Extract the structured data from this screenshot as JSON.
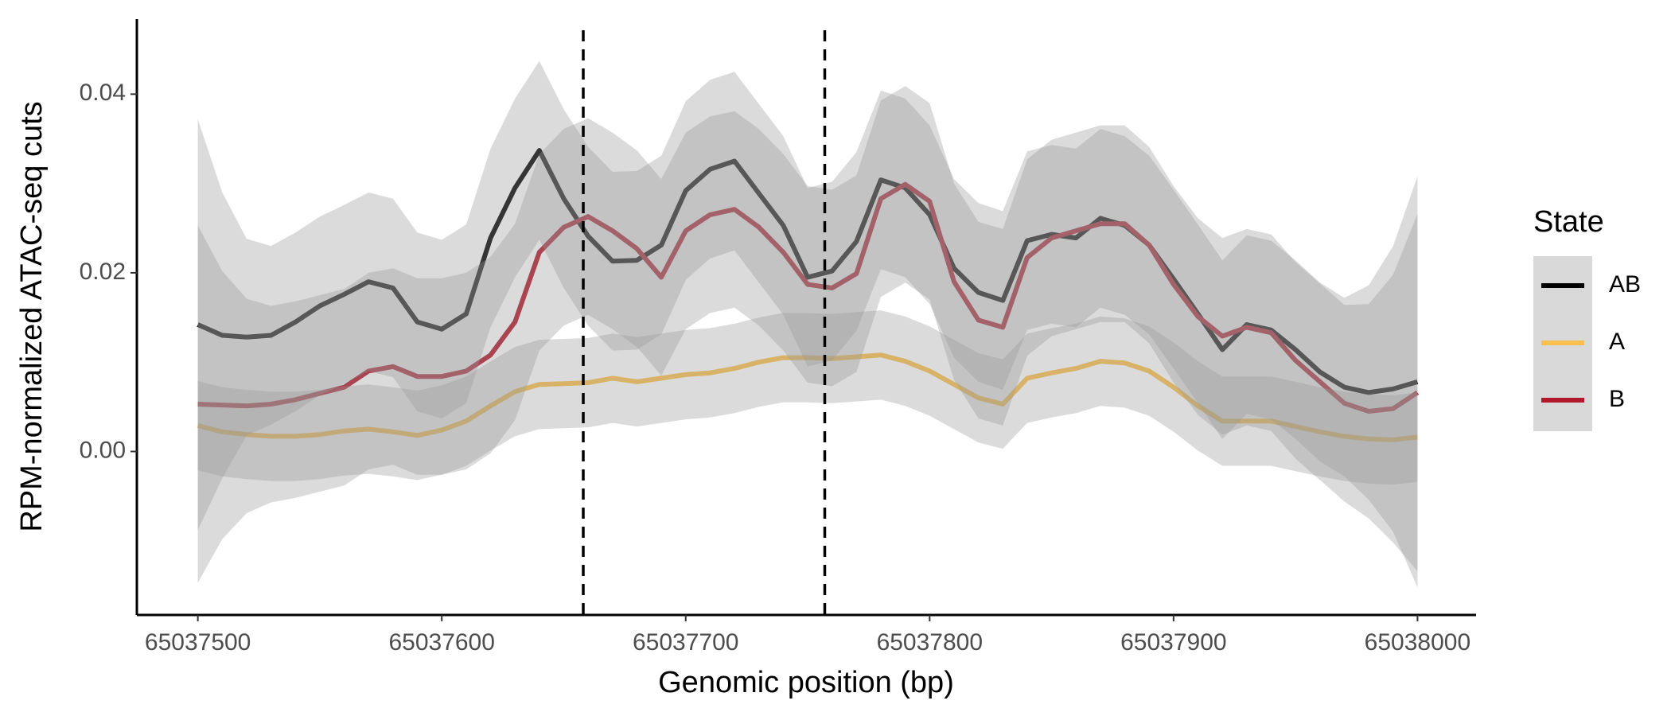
{
  "chart_data": {
    "type": "line",
    "x_label": "Genomic position (bp)",
    "y_label": "RPM-normalized ATAC-seq cuts",
    "legend_title": "State",
    "legend_position": "right",
    "x": [
      65037500,
      65037510,
      65037520,
      65037530,
      65037540,
      65037550,
      65037560,
      65037570,
      65037580,
      65037590,
      65037600,
      65037610,
      65037620,
      65037630,
      65037640,
      65037650,
      65037660,
      65037670,
      65037680,
      65037690,
      65037700,
      65037710,
      65037720,
      65037730,
      65037740,
      65037750,
      65037760,
      65037770,
      65037780,
      65037790,
      65037800,
      65037810,
      65037820,
      65037830,
      65037840,
      65037850,
      65037860,
      65037870,
      65037880,
      65037890,
      65037900,
      65037910,
      65037920,
      65037930,
      65037940,
      65037950,
      65037960,
      65037970,
      65037980,
      65037990,
      65038000
    ],
    "series": [
      {
        "name": "AB",
        "color": "#000000",
        "values": [
          0.0142,
          0.013,
          0.0128,
          0.013,
          0.0145,
          0.0163,
          0.0176,
          0.019,
          0.0183,
          0.0145,
          0.0137,
          0.0154,
          0.0239,
          0.0295,
          0.0337,
          0.0283,
          0.0241,
          0.0213,
          0.0214,
          0.0231,
          0.0292,
          0.0316,
          0.0325,
          0.0289,
          0.0253,
          0.0195,
          0.0202,
          0.0235,
          0.0304,
          0.0295,
          0.0265,
          0.0205,
          0.0178,
          0.0169,
          0.0236,
          0.0243,
          0.0239,
          0.0261,
          0.0253,
          0.0231,
          0.0193,
          0.0154,
          0.0114,
          0.0142,
          0.0136,
          0.0114,
          0.0089,
          0.0072,
          0.0066,
          0.007,
          0.0078
        ],
        "upper": [
          0.0372,
          0.029,
          0.0238,
          0.023,
          0.0245,
          0.0263,
          0.0276,
          0.029,
          0.0283,
          0.0245,
          0.0237,
          0.0254,
          0.0339,
          0.0395,
          0.0437,
          0.0383,
          0.0341,
          0.0313,
          0.0314,
          0.0331,
          0.0392,
          0.0416,
          0.0425,
          0.0389,
          0.0353,
          0.0295,
          0.0302,
          0.0335,
          0.0404,
          0.0395,
          0.0365,
          0.0305,
          0.0278,
          0.0269,
          0.0336,
          0.0343,
          0.0339,
          0.0361,
          0.0353,
          0.0331,
          0.0293,
          0.0254,
          0.0214,
          0.0242,
          0.0236,
          0.0214,
          0.0189,
          0.0172,
          0.0186,
          0.023,
          0.0308
        ],
        "lower": [
          -0.0088,
          -0.003,
          0.0018,
          0.003,
          0.0045,
          0.0063,
          0.0076,
          0.009,
          0.0083,
          0.0045,
          0.0037,
          0.0054,
          0.0139,
          0.0195,
          0.0237,
          0.0183,
          0.0141,
          0.0113,
          0.0114,
          0.0131,
          0.0192,
          0.0216,
          0.0225,
          0.0189,
          0.0153,
          0.0095,
          0.0102,
          0.0135,
          0.0204,
          0.0195,
          0.0165,
          0.0105,
          0.0078,
          0.0069,
          0.0136,
          0.0143,
          0.0139,
          0.0161,
          0.0153,
          0.0131,
          0.0093,
          0.0054,
          0.0014,
          0.0042,
          0.0036,
          0.0014,
          -0.0011,
          -0.0028,
          -0.0054,
          -0.009,
          -0.0152
        ]
      },
      {
        "name": "A",
        "color": "#fbc04e",
        "values": [
          0.0029,
          0.0022,
          0.0019,
          0.0017,
          0.0017,
          0.0019,
          0.0023,
          0.0025,
          0.0022,
          0.0018,
          0.0024,
          0.0034,
          0.0051,
          0.0067,
          0.0075,
          0.0076,
          0.0077,
          0.0082,
          0.0078,
          0.0082,
          0.0086,
          0.0088,
          0.0093,
          0.01,
          0.0105,
          0.0105,
          0.0104,
          0.0106,
          0.0108,
          0.0101,
          0.009,
          0.0075,
          0.006,
          0.0053,
          0.0082,
          0.0088,
          0.0093,
          0.0101,
          0.0099,
          0.009,
          0.0072,
          0.0051,
          0.0034,
          0.0034,
          0.0034,
          0.0028,
          0.0022,
          0.0017,
          0.0014,
          0.0013,
          0.0016
        ],
        "upper": [
          0.0079,
          0.0072,
          0.0069,
          0.0067,
          0.0067,
          0.0069,
          0.0073,
          0.0075,
          0.0072,
          0.0068,
          0.0074,
          0.0084,
          0.0101,
          0.0117,
          0.0125,
          0.0126,
          0.0127,
          0.0132,
          0.0128,
          0.0132,
          0.0136,
          0.0138,
          0.0143,
          0.015,
          0.0155,
          0.0155,
          0.0154,
          0.0156,
          0.0158,
          0.0151,
          0.014,
          0.0125,
          0.011,
          0.0103,
          0.0132,
          0.0138,
          0.0143,
          0.0151,
          0.0149,
          0.014,
          0.0122,
          0.0101,
          0.0084,
          0.0084,
          0.0084,
          0.0078,
          0.0072,
          0.0067,
          0.0064,
          0.0063,
          0.0066
        ],
        "lower": [
          -0.0021,
          -0.0028,
          -0.0031,
          -0.0033,
          -0.0033,
          -0.0031,
          -0.0027,
          -0.0025,
          -0.0028,
          -0.0032,
          -0.0026,
          -0.0016,
          0.0001,
          0.0017,
          0.0025,
          0.0026,
          0.0027,
          0.0032,
          0.0028,
          0.0032,
          0.0036,
          0.0038,
          0.0043,
          0.005,
          0.0055,
          0.0055,
          0.0054,
          0.0056,
          0.0058,
          0.0051,
          0.004,
          0.0025,
          0.001,
          0.0003,
          0.0032,
          0.0038,
          0.0043,
          0.0051,
          0.0049,
          0.004,
          0.0022,
          0.0001,
          -0.0016,
          -0.0016,
          -0.0016,
          -0.0022,
          -0.0028,
          -0.0033,
          -0.0036,
          -0.0037,
          -0.0034
        ]
      },
      {
        "name": "B",
        "color": "#b2182b",
        "values": [
          0.0053,
          0.0052,
          0.0051,
          0.0053,
          0.0058,
          0.0065,
          0.0072,
          0.009,
          0.0095,
          0.0084,
          0.0084,
          0.009,
          0.0108,
          0.0145,
          0.0223,
          0.0251,
          0.0263,
          0.0247,
          0.0227,
          0.0195,
          0.0247,
          0.0265,
          0.0271,
          0.0251,
          0.0223,
          0.0187,
          0.0183,
          0.0199,
          0.0283,
          0.0299,
          0.028,
          0.019,
          0.0147,
          0.0139,
          0.0217,
          0.0239,
          0.0247,
          0.0255,
          0.0255,
          0.0231,
          0.0187,
          0.0151,
          0.0129,
          0.0139,
          0.0133,
          0.0102,
          0.0078,
          0.0054,
          0.0045,
          0.0048,
          0.0066
        ],
        "upper": [
          0.0253,
          0.0202,
          0.0171,
          0.0163,
          0.0168,
          0.0175,
          0.0182,
          0.02,
          0.0205,
          0.0194,
          0.0194,
          0.02,
          0.0218,
          0.0255,
          0.0333,
          0.0361,
          0.0373,
          0.0357,
          0.0337,
          0.0305,
          0.0357,
          0.0375,
          0.0381,
          0.0361,
          0.0333,
          0.0297,
          0.0293,
          0.0309,
          0.0393,
          0.0409,
          0.039,
          0.03,
          0.0257,
          0.0249,
          0.0327,
          0.0349,
          0.0357,
          0.0365,
          0.0365,
          0.0341,
          0.0297,
          0.0261,
          0.0239,
          0.0249,
          0.0243,
          0.0212,
          0.0188,
          0.0164,
          0.0165,
          0.0198,
          0.0266
        ],
        "lower": [
          -0.0147,
          -0.0098,
          -0.0069,
          -0.0057,
          -0.0052,
          -0.0045,
          -0.0038,
          -0.002,
          -0.0015,
          -0.0026,
          -0.0026,
          -0.002,
          -0.0002,
          0.0035,
          0.0113,
          0.0141,
          0.0153,
          0.0137,
          0.0117,
          0.0085,
          0.0137,
          0.0155,
          0.0161,
          0.0141,
          0.0113,
          0.0077,
          0.0073,
          0.0089,
          0.0173,
          0.0189,
          0.017,
          0.008,
          0.0037,
          0.0029,
          0.0107,
          0.0129,
          0.0137,
          0.0145,
          0.0145,
          0.0121,
          0.0077,
          0.0041,
          0.0019,
          0.0029,
          0.0023,
          -0.0008,
          -0.0032,
          -0.0056,
          -0.0075,
          -0.0102,
          -0.0134
        ]
      }
    ],
    "ribbon_color": "#999999",
    "vlines": [
      65037658,
      65037757
    ],
    "xlim": [
      65037475,
      65038024
    ],
    "xticks": [
      65037500,
      65037600,
      65037700,
      65037800,
      65037900,
      65038000
    ],
    "ylim": [
      -0.0183,
      0.0484
    ],
    "yticks": [
      {
        "value": 0,
        "label": "0.00"
      },
      {
        "value": 0.02,
        "label": "0.02"
      },
      {
        "value": 0.04,
        "label": "0.04"
      }
    ],
    "grid": false
  }
}
